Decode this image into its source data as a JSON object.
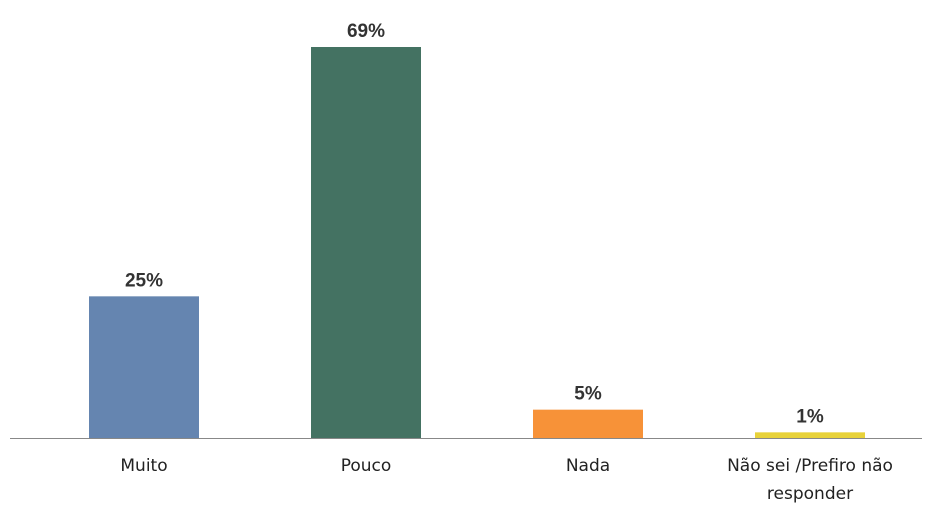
{
  "chart_data": {
    "type": "bar",
    "categories": [
      "Muito",
      "Pouco",
      "Nada",
      "Não sei /Prefiro não responder"
    ],
    "values": [
      25,
      69,
      5,
      1
    ],
    "value_labels": [
      "25%",
      "69%",
      "5%",
      "1%"
    ],
    "colors": [
      "#6585b0",
      "#447262",
      "#f79238",
      "#e8d23a"
    ]
  }
}
